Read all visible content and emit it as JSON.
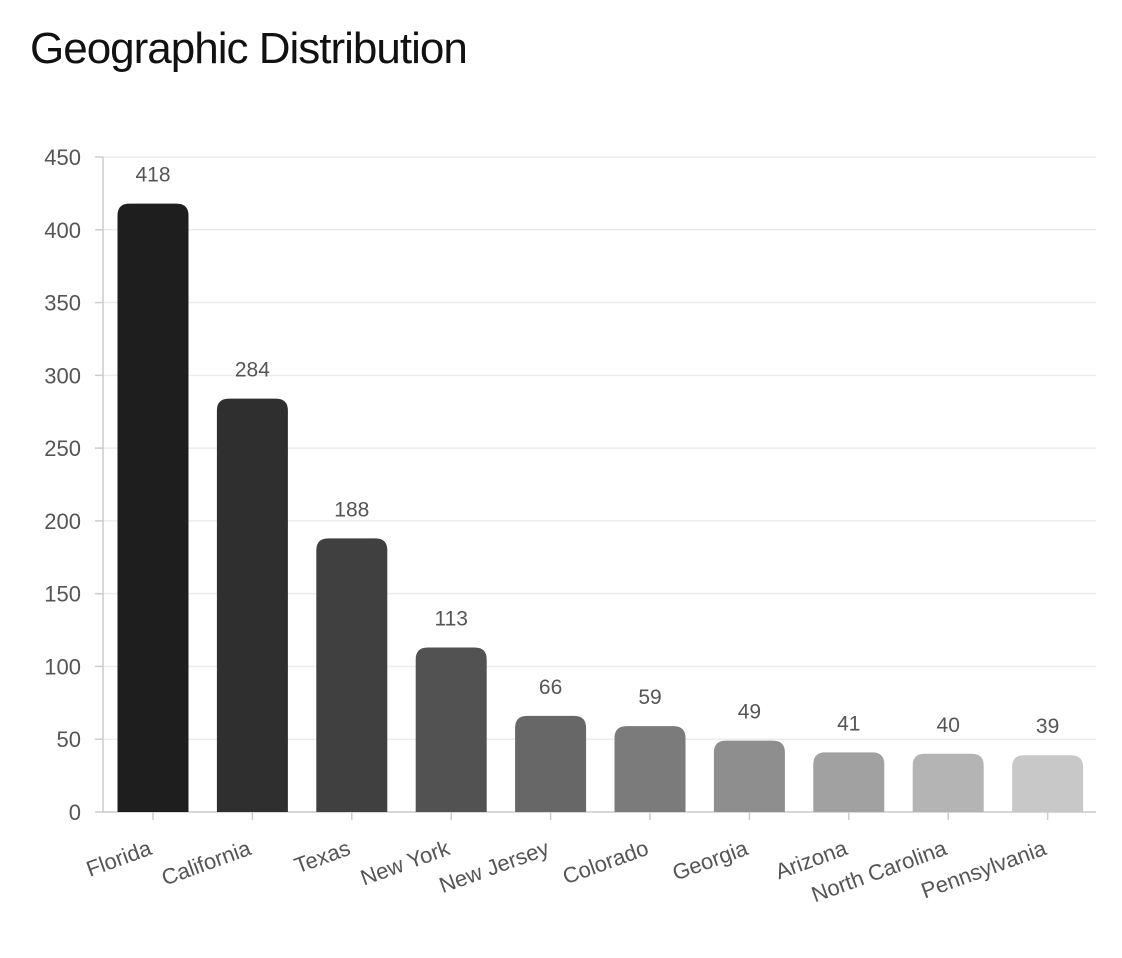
{
  "chart_data": {
    "type": "bar",
    "title": "Geographic Distribution",
    "xlabel": "",
    "ylabel": "",
    "categories": [
      "Florida",
      "California",
      "Texas",
      "New York",
      "New Jersey",
      "Colorado",
      "Georgia",
      "Arizona",
      "North Carolina",
      "Pennsylvania"
    ],
    "values": [
      418,
      284,
      188,
      113,
      66,
      59,
      49,
      41,
      40,
      39
    ],
    "ylim": [
      0,
      450
    ],
    "yticks": [
      0,
      50,
      100,
      150,
      200,
      250,
      300,
      350,
      400,
      450
    ],
    "grid": true,
    "legend": "none",
    "bar_colors": [
      "#1e1e1e",
      "#2f2f2f",
      "#404040",
      "#525252",
      "#676767",
      "#7b7b7b",
      "#8e8e8e",
      "#a1a1a1",
      "#b4b4b4",
      "#c8c8c8"
    ],
    "grid_color": "#ececec",
    "axis_color": "#cccccc"
  }
}
